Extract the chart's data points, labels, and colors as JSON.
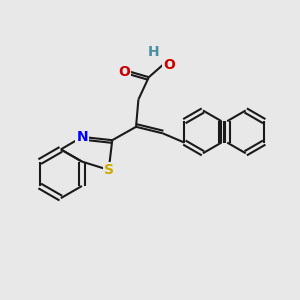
{
  "background_color": "#e8e8e8",
  "bond_color": "#1a1a1a",
  "bond_width": 1.5,
  "figsize": [
    3.0,
    3.0
  ],
  "dpi": 100,
  "atoms": {
    "N": {
      "color": "#0000ff",
      "fontsize": 10,
      "fontweight": "bold"
    },
    "S": {
      "color": "#ccaa00",
      "fontsize": 10,
      "fontweight": "bold"
    },
    "O": {
      "color": "#cc0000",
      "fontsize": 10,
      "fontweight": "bold"
    },
    "H": {
      "color": "#4a8fa0",
      "fontsize": 10,
      "fontweight": "bold"
    }
  }
}
